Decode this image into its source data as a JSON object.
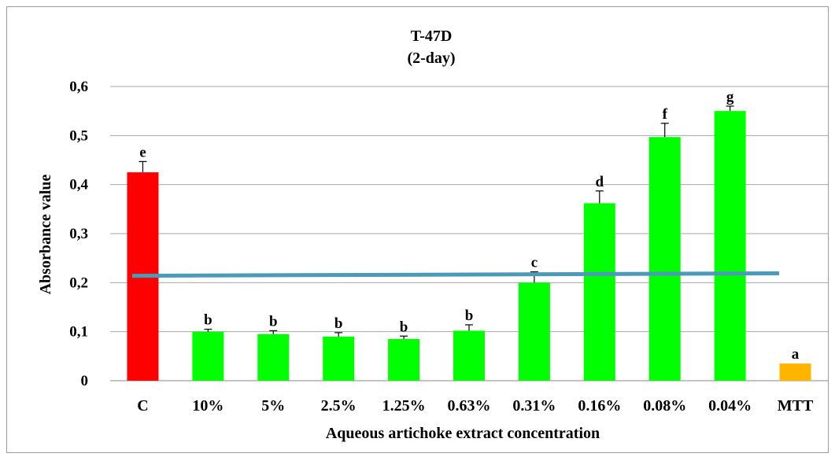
{
  "chart_data": {
    "type": "bar",
    "title": "T-47D",
    "subtitle": "(2-day)",
    "xlabel": "Aqueous artichoke extract concentration",
    "ylabel": "Absorbance value",
    "ylim": [
      0,
      0.6
    ],
    "yticks": [
      "0",
      "0,1",
      "0,2",
      "0,3",
      "0,4",
      "0,5",
      "0,6"
    ],
    "grid": true,
    "categories": [
      "C",
      "10%",
      "5%",
      "2.5%",
      "1.25%",
      "0.63%",
      "0.31%",
      "0.16%",
      "0.08%",
      "0.04%",
      "MTT"
    ],
    "values": [
      0.425,
      0.1,
      0.095,
      0.09,
      0.085,
      0.102,
      0.2,
      0.362,
      0.497,
      0.55,
      0.035
    ],
    "errors": [
      0.022,
      0.005,
      0.007,
      0.008,
      0.006,
      0.012,
      0.022,
      0.025,
      0.028,
      0.01,
      0.0
    ],
    "letters": [
      "e",
      "b",
      "b",
      "b",
      "b",
      "b",
      "c",
      "d",
      "f",
      "g",
      "a"
    ],
    "colors": [
      "#ff0000",
      "#00ff00",
      "#00ff00",
      "#00ff00",
      "#00ff00",
      "#00ff00",
      "#00ff00",
      "#00ff00",
      "#00ff00",
      "#00ff00",
      "#ffb400"
    ],
    "reference_line": {
      "y_start": 0.214,
      "y_end": 0.219,
      "color": "#4a9ab8"
    },
    "legend": "none"
  }
}
